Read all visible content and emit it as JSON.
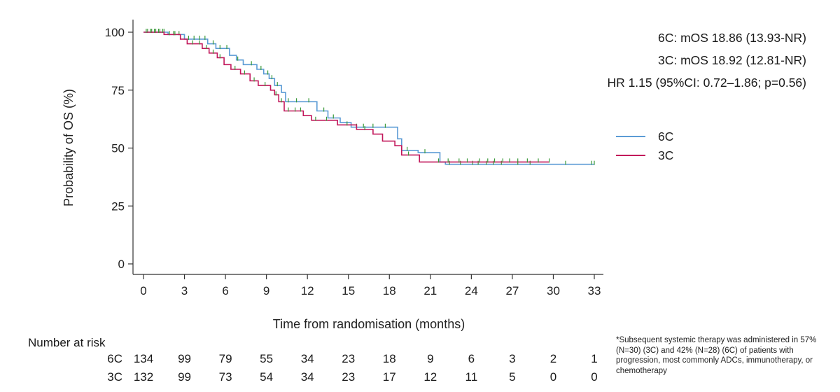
{
  "chart_data": {
    "type": "line",
    "xlabel": "Time from randomisation (months)",
    "ylabel": "Probability of OS (%)",
    "xlim": [
      0,
      33
    ],
    "ylim": [
      0,
      100
    ],
    "xticks": [
      0,
      3,
      6,
      9,
      12,
      15,
      18,
      21,
      24,
      27,
      30,
      33
    ],
    "yticks": [
      0,
      25,
      50,
      75,
      100
    ],
    "legend_position": "right",
    "annotations": [
      "6C: mOS 18.86 (13.93-NR)",
      "3C: mOS 18.92 (12.81-NR)",
      "HR 1.15 (95%CI: 0.72–1.86; p=0.56)"
    ],
    "series": [
      {
        "name": "6C",
        "color": "#5b9bd5",
        "steps": [
          [
            0,
            100
          ],
          [
            1.8,
            99
          ],
          [
            3,
            97
          ],
          [
            4.7,
            95
          ],
          [
            5.3,
            93
          ],
          [
            6.3,
            90
          ],
          [
            6.8,
            88
          ],
          [
            7.3,
            86
          ],
          [
            8.3,
            84
          ],
          [
            8.8,
            82
          ],
          [
            9.2,
            80
          ],
          [
            9.6,
            77
          ],
          [
            10.1,
            74
          ],
          [
            10.4,
            70
          ],
          [
            12.7,
            66
          ],
          [
            13.5,
            63
          ],
          [
            14.4,
            61
          ],
          [
            15.2,
            59
          ],
          [
            18.6,
            54
          ],
          [
            18.9,
            49
          ],
          [
            20.1,
            48
          ],
          [
            21.7,
            44
          ],
          [
            22.1,
            43
          ],
          [
            33,
            43
          ]
        ],
        "censor_x": [
          0.3,
          0.6,
          0.9,
          1.2,
          1.5,
          2.2,
          2.6,
          3.3,
          3.7,
          4.1,
          4.5,
          5.1,
          5.6,
          6.1,
          6.9,
          7.9,
          8.6,
          9.1,
          9.4,
          9.8,
          10.6,
          11.2,
          12.1,
          13.2,
          13.9,
          15.6,
          16.1,
          16.8,
          17.7,
          19.3,
          20.6,
          22.4,
          23.2,
          24.1,
          24.5,
          25.1,
          25.6,
          26.2,
          27.4,
          28.3,
          30.9,
          32.8,
          33
        ]
      },
      {
        "name": "3C",
        "color": "#c2185b",
        "steps": [
          [
            0,
            100
          ],
          [
            1.5,
            99
          ],
          [
            2.7,
            97
          ],
          [
            3.2,
            95
          ],
          [
            4.3,
            93
          ],
          [
            4.8,
            91
          ],
          [
            5.4,
            89
          ],
          [
            5.9,
            86
          ],
          [
            6.4,
            84
          ],
          [
            7.1,
            82
          ],
          [
            7.8,
            79
          ],
          [
            8.4,
            77
          ],
          [
            9.3,
            75
          ],
          [
            9.6,
            73
          ],
          [
            9.9,
            70
          ],
          [
            10.3,
            66
          ],
          [
            11.7,
            64
          ],
          [
            12.3,
            62
          ],
          [
            14.2,
            60
          ],
          [
            15.6,
            58
          ],
          [
            16.8,
            56
          ],
          [
            17.5,
            53
          ],
          [
            18.4,
            51
          ],
          [
            18.9,
            47
          ],
          [
            20.2,
            44
          ],
          [
            29.7,
            44
          ]
        ],
        "censor_x": [
          0.2,
          0.5,
          0.8,
          1.1,
          1.4,
          1.9,
          2.3,
          3.6,
          4.1,
          4.6,
          5.1,
          5.6,
          6.7,
          7.4,
          8.1,
          8.9,
          9.7,
          10.1,
          10.6,
          11.1,
          11.5,
          12.6,
          13.4,
          14.9,
          16.2,
          19.4,
          21.6,
          22.3,
          23.1,
          23.7,
          24.6,
          25.2,
          25.7,
          26.3,
          26.8,
          27.4,
          28.1,
          28.9,
          29.7
        ]
      }
    ],
    "number_at_risk": {
      "title": "Number at risk",
      "rows": [
        {
          "label": "6C",
          "values": [
            "134",
            "99",
            "79",
            "55",
            "34",
            "23",
            "18",
            "9",
            "6",
            "3",
            "2",
            "1"
          ]
        },
        {
          "label": "3C",
          "values": [
            "132",
            "99",
            "73",
            "54",
            "34",
            "23",
            "17",
            "12",
            "11",
            "5",
            "0",
            "0"
          ]
        }
      ]
    }
  },
  "footnote": "*Subsequent systemic therapy was administered in 57% (N=30) (3C) and 42% (N=28) (6C) of patients with progression, most commonly ADCs, immunotherapy, or chemotherapy"
}
